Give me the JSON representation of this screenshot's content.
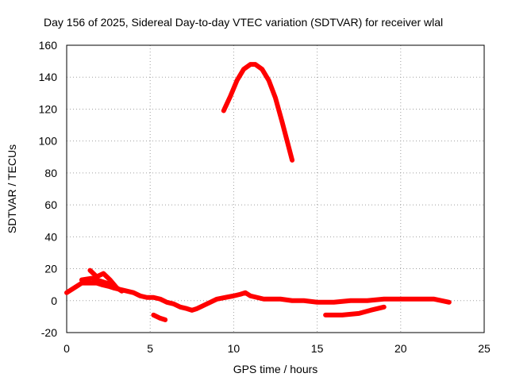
{
  "chart_data": {
    "type": "line",
    "title": "Day 156 of 2025, Sidereal Day-to-day VTEC variation (SDTVAR) for receiver wlal",
    "xlabel": "GPS time / hours",
    "ylabel": "SDTVAR / TECUs",
    "xlim": [
      0,
      25
    ],
    "ylim": [
      -20,
      160
    ],
    "xticks": [
      0,
      5,
      10,
      15,
      20,
      25
    ],
    "yticks": [
      -20,
      0,
      20,
      40,
      60,
      80,
      100,
      120,
      140,
      160
    ],
    "grid": true,
    "series": [
      {
        "name": "main",
        "color": "#ff0000",
        "x": [
          0.0,
          0.3,
          0.6,
          0.9,
          1.2,
          1.5,
          1.8,
          2.1,
          2.5,
          2.8,
          3.2,
          3.6,
          4.0,
          4.4,
          4.8,
          5.2,
          5.6,
          6.0,
          6.4,
          6.8,
          7.2,
          7.5,
          7.8,
          8.2,
          8.6,
          9.0,
          9.5,
          10.0,
          10.4,
          10.7,
          11.0,
          11.4,
          11.8,
          12.2,
          12.8,
          13.5,
          14.2,
          15.0,
          16.0,
          17.0,
          18.0,
          19.0,
          20.0,
          21.0,
          22.0,
          22.9
        ],
        "y": [
          5,
          7,
          9,
          11,
          11,
          11,
          11,
          10,
          9,
          8,
          7,
          6,
          5,
          3,
          2,
          2,
          1,
          -1,
          -2,
          -4,
          -5,
          -6,
          -5,
          -3,
          -1,
          1,
          2,
          3,
          4,
          5,
          3,
          2,
          1,
          1,
          1,
          0,
          0,
          -1,
          -1,
          0,
          0,
          1,
          1,
          1,
          1,
          -1
        ]
      },
      {
        "name": "spike-1",
        "color": "#ff0000",
        "x": [
          1.4,
          1.8,
          2.2,
          2.6,
          3.0
        ],
        "y": [
          19,
          15,
          17,
          13,
          8
        ]
      },
      {
        "name": "spike-2",
        "color": "#ff0000",
        "x": [
          0.9,
          1.5,
          2.1,
          2.7,
          3.3
        ],
        "y": [
          13,
          14,
          12,
          10,
          6
        ]
      },
      {
        "name": "arc",
        "color": "#ff0000",
        "x": [
          9.4,
          9.8,
          10.2,
          10.6,
          11.0,
          11.3,
          11.7,
          12.1,
          12.5,
          12.9,
          13.2,
          13.5
        ],
        "y": [
          119,
          128,
          138,
          145,
          148,
          148,
          145,
          138,
          127,
          112,
          100,
          88
        ]
      },
      {
        "name": "low-1",
        "color": "#ff0000",
        "x": [
          5.2,
          5.6,
          5.9
        ],
        "y": [
          -9,
          -11,
          -12
        ]
      },
      {
        "name": "low-2",
        "color": "#ff0000",
        "x": [
          15.5,
          16.5,
          17.5,
          18.2,
          19.0
        ],
        "y": [
          -9,
          -9,
          -8,
          -6,
          -4
        ]
      }
    ]
  }
}
